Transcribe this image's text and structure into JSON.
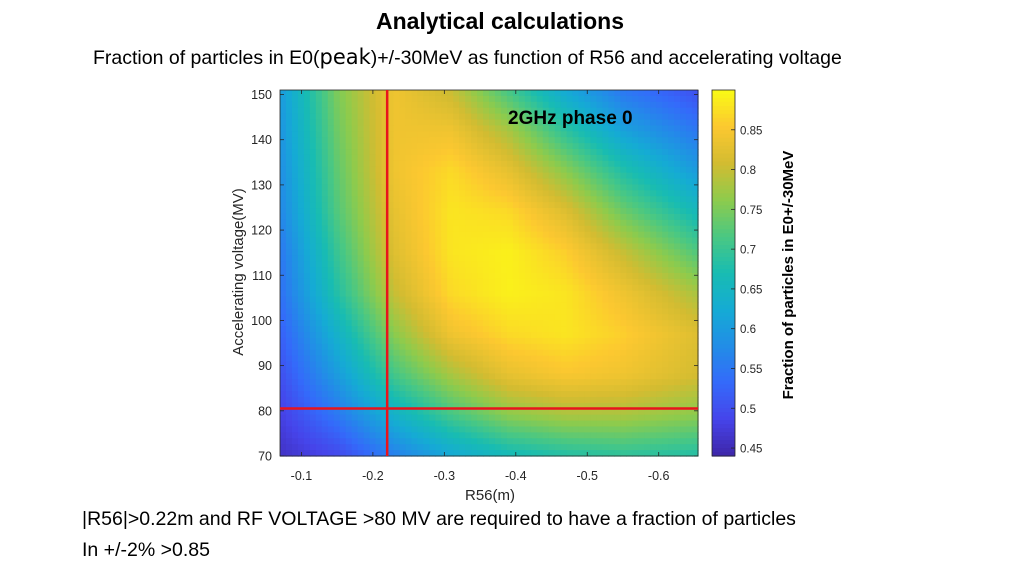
{
  "slide": {
    "title": "Analytical calculations",
    "subtitle_pre": "Fraction of particles in E0(",
    "subtitle_peak": "peak",
    "subtitle_post": ")+/-30MeV as function of R56 and  accelerating voltage",
    "caption_line1": "|R56|>0.22m and RF VOLTAGE >80 MV are required to have a fraction of particles",
    "caption_line2": "In +/-2%  >0.85"
  },
  "chart_data": {
    "type": "heatmap",
    "annotation": "2GHz phase 0",
    "xlabel": "R56(m)",
    "ylabel": "Accelerating voltage(MV)",
    "colorbar_label": "Fraction of particles in E0+/-30MeV",
    "x_range": [
      -0.07,
      -0.655
    ],
    "y_range": [
      70,
      151
    ],
    "x_ticks": [
      -0.1,
      -0.2,
      -0.3,
      -0.4,
      -0.5,
      -0.6
    ],
    "x_tick_labels": [
      "-0.1",
      "-0.2",
      "-0.3",
      "-0.4",
      "-0.5",
      "-0.6"
    ],
    "y_ticks": [
      70,
      80,
      90,
      100,
      110,
      120,
      130,
      140,
      150
    ],
    "y_tick_labels": [
      "70",
      "80",
      "90",
      "100",
      "110",
      "120",
      "130",
      "140",
      "150"
    ],
    "colorbar_range": [
      0.44,
      0.9
    ],
    "colorbar_ticks": [
      0.45,
      0.5,
      0.55,
      0.6,
      0.65,
      0.7,
      0.75,
      0.8,
      0.85
    ],
    "colorbar_tick_labels": [
      "0.45",
      "0.5",
      "0.55",
      "0.6",
      "0.65",
      "0.7",
      "0.75",
      "0.8",
      "0.85"
    ],
    "colormap": "parula",
    "colors": {
      "threshold_line": "#e8141c"
    },
    "threshold_lines": {
      "r56": -0.22,
      "voltage": 80.5
    },
    "grid": [
      [
        0.46,
        0.49,
        0.56,
        0.62,
        0.66,
        0.68,
        0.69,
        0.68
      ],
      [
        0.48,
        0.55,
        0.64,
        0.71,
        0.76,
        0.78,
        0.78,
        0.76
      ],
      [
        0.5,
        0.6,
        0.71,
        0.78,
        0.83,
        0.85,
        0.84,
        0.81
      ],
      [
        0.52,
        0.64,
        0.76,
        0.84,
        0.87,
        0.88,
        0.86,
        0.82
      ],
      [
        0.54,
        0.68,
        0.8,
        0.87,
        0.89,
        0.88,
        0.84,
        0.78
      ],
      [
        0.55,
        0.7,
        0.82,
        0.88,
        0.89,
        0.86,
        0.8,
        0.72
      ],
      [
        0.57,
        0.72,
        0.83,
        0.88,
        0.87,
        0.82,
        0.74,
        0.66
      ],
      [
        0.58,
        0.73,
        0.84,
        0.87,
        0.83,
        0.76,
        0.68,
        0.6
      ],
      [
        0.59,
        0.74,
        0.84,
        0.84,
        0.78,
        0.69,
        0.61,
        0.55
      ],
      [
        0.6,
        0.75,
        0.84,
        0.8,
        0.71,
        0.62,
        0.55,
        0.5
      ]
    ],
    "grid_x": [
      -0.07,
      -0.15,
      -0.23,
      -0.31,
      -0.39,
      -0.47,
      -0.55,
      -0.655
    ],
    "grid_y": [
      70,
      79,
      88,
      97,
      106,
      115,
      124,
      133,
      142,
      151
    ]
  }
}
